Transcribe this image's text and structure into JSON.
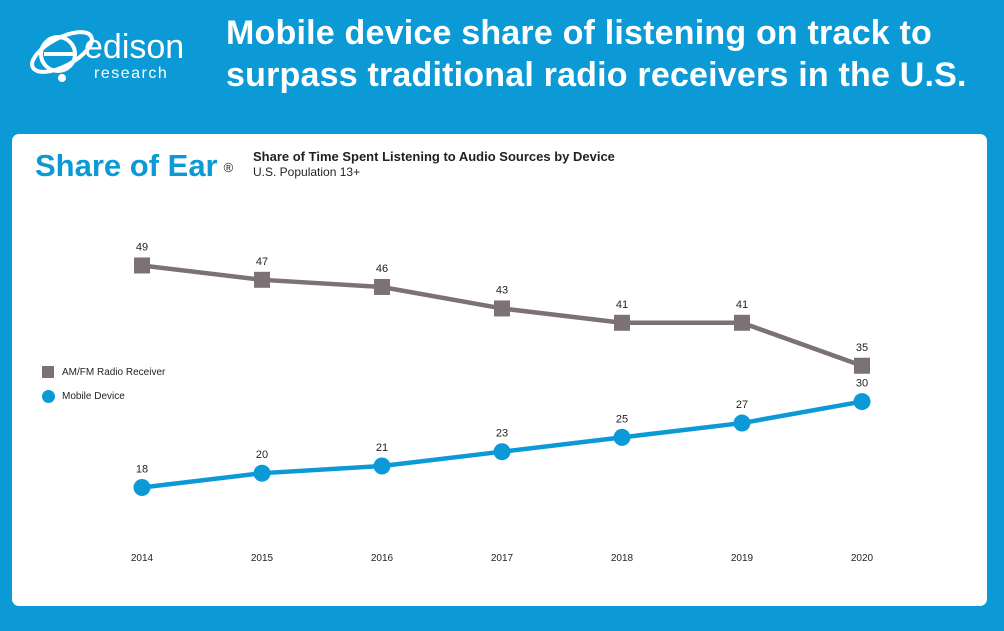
{
  "brand": {
    "logo_word": "edison",
    "logo_sub": "research"
  },
  "headline": {
    "line1": "Mobile device share of listening on track to",
    "line2": "surpass traditional radio receivers in the U.S."
  },
  "card": {
    "brand_title": "Share of Ear",
    "registered_mark": "®",
    "subtitle": "Share of Time Spent Listening to Audio Sources by Device",
    "population": "U.S. Population 13+"
  },
  "colors": {
    "background": "#0b9ad6",
    "radio": "#7c7174",
    "mobile": "#0b9ad6"
  },
  "chart_data": {
    "type": "line",
    "title": "Share of Time Spent Listening to Audio Sources by Device",
    "subtitle": "U.S. Population 13+",
    "x": [
      "2014",
      "2015",
      "2016",
      "2017",
      "2018",
      "2019",
      "2020"
    ],
    "series": [
      {
        "name": "AM/FM Radio Receiver",
        "marker": "square",
        "color": "#7c7174",
        "values": [
          49,
          47,
          46,
          43,
          41,
          41,
          35
        ]
      },
      {
        "name": "Mobile Device",
        "marker": "circle",
        "color": "#0b9ad6",
        "values": [
          18,
          20,
          21,
          23,
          25,
          27,
          30
        ]
      }
    ],
    "ylim": [
      15,
      52
    ],
    "grid": false,
    "data_labels": true,
    "legend_position": "left"
  }
}
